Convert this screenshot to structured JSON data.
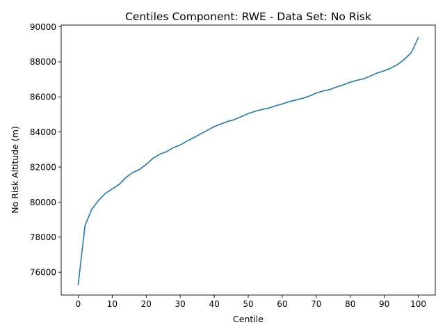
{
  "chart_data": {
    "type": "line",
    "title": "Centiles Component: RWE - Data Set: No Risk",
    "xlabel": "Centile",
    "ylabel": "No Risk Altitude (m)",
    "xlim": [
      -5,
      105
    ],
    "ylim": [
      74700,
      90100
    ],
    "x_ticks": [
      0,
      10,
      20,
      30,
      40,
      50,
      60,
      70,
      80,
      90,
      100
    ],
    "y_ticks": [
      76000,
      78000,
      80000,
      82000,
      84000,
      86000,
      88000,
      90000
    ],
    "grid": false,
    "series": [
      {
        "color": "#1f77b4",
        "x": [
          0,
          2,
          4,
          6,
          8,
          10,
          12,
          14,
          16,
          18,
          20,
          22,
          24,
          26,
          28,
          30,
          32,
          34,
          36,
          38,
          40,
          42,
          44,
          46,
          48,
          50,
          52,
          54,
          56,
          58,
          60,
          62,
          64,
          66,
          68,
          70,
          72,
          74,
          76,
          78,
          80,
          82,
          84,
          86,
          88,
          90,
          92,
          94,
          96,
          98,
          100
        ],
        "values": [
          75300,
          78650,
          79600,
          80100,
          80500,
          80750,
          81000,
          81400,
          81680,
          81860,
          82150,
          82500,
          82730,
          82880,
          83110,
          83260,
          83480,
          83680,
          83890,
          84100,
          84310,
          84460,
          84600,
          84710,
          84880,
          85050,
          85180,
          85280,
          85360,
          85490,
          85600,
          85730,
          85820,
          85920,
          86050,
          86220,
          86340,
          86420,
          86570,
          86690,
          86840,
          86950,
          87040,
          87200,
          87370,
          87490,
          87650,
          87860,
          88160,
          88540,
          89380
        ]
      }
    ]
  }
}
